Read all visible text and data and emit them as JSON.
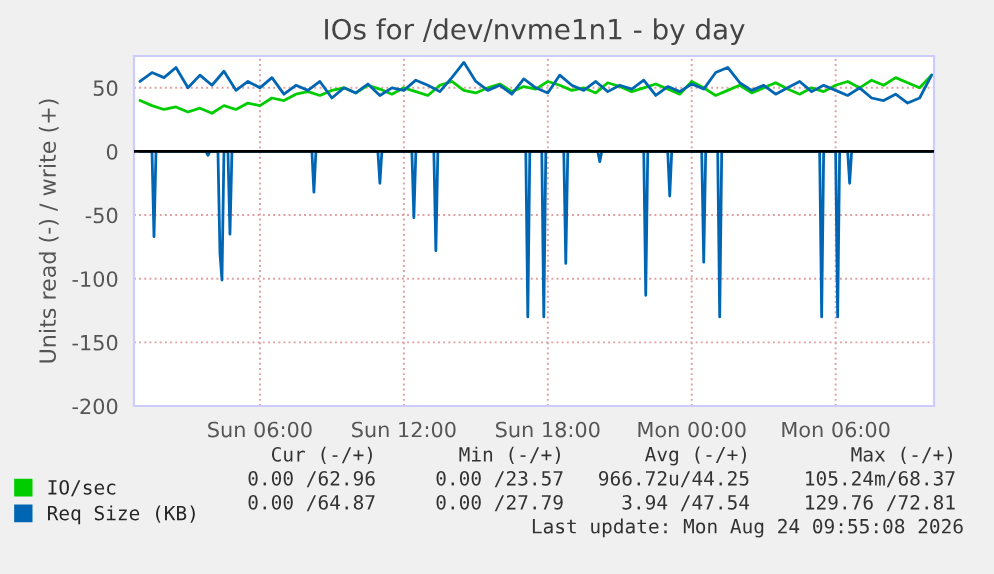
{
  "chart_data": {
    "type": "line",
    "title": "IOs for /dev/nvme1n1 - by day",
    "ylabel": "Units read (-) / write (+)",
    "xlim": [
      "2026-08-23T00:45",
      "2026-08-24T10:06"
    ],
    "ylim": [
      -200,
      75
    ],
    "xticks": [
      {
        "value": "2026-08-23T06:00",
        "label": "Sun 06:00"
      },
      {
        "value": "2026-08-23T12:00",
        "label": "Sun 12:00"
      },
      {
        "value": "2026-08-23T18:00",
        "label": "Sun 18:00"
      },
      {
        "value": "2026-08-24T00:00",
        "label": "Mon 00:00"
      },
      {
        "value": "2026-08-24T06:00",
        "label": "Mon 06:00"
      }
    ],
    "yticks": [
      -200,
      -150,
      -100,
      -50,
      0,
      50
    ],
    "grid": true,
    "legend": "bottom",
    "marker": "none",
    "line_style": "solid",
    "ref_lines": [
      {
        "axis": "y",
        "value": 0,
        "color": "#000000"
      }
    ],
    "x": [
      "2026-08-23T01:00",
      "2026-08-23T01:30",
      "2026-08-23T02:00",
      "2026-08-23T02:30",
      "2026-08-23T03:00",
      "2026-08-23T03:30",
      "2026-08-23T04:00",
      "2026-08-23T04:30",
      "2026-08-23T05:00",
      "2026-08-23T05:30",
      "2026-08-23T06:00",
      "2026-08-23T06:30",
      "2026-08-23T07:00",
      "2026-08-23T07:30",
      "2026-08-23T08:00",
      "2026-08-23T08:30",
      "2026-08-23T09:00",
      "2026-08-23T09:30",
      "2026-08-23T10:00",
      "2026-08-23T10:30",
      "2026-08-23T11:00",
      "2026-08-23T11:30",
      "2026-08-23T12:00",
      "2026-08-23T12:30",
      "2026-08-23T13:00",
      "2026-08-23T13:30",
      "2026-08-23T14:00",
      "2026-08-23T14:30",
      "2026-08-23T15:00",
      "2026-08-23T15:30",
      "2026-08-23T16:00",
      "2026-08-23T16:30",
      "2026-08-23T17:00",
      "2026-08-23T17:30",
      "2026-08-23T18:00",
      "2026-08-23T18:30",
      "2026-08-23T19:00",
      "2026-08-23T19:30",
      "2026-08-23T20:00",
      "2026-08-23T20:30",
      "2026-08-23T21:00",
      "2026-08-23T21:30",
      "2026-08-23T22:00",
      "2026-08-23T22:30",
      "2026-08-23T23:00",
      "2026-08-23T23:30",
      "2026-08-24T00:00",
      "2026-08-24T00:30",
      "2026-08-24T01:00",
      "2026-08-24T01:30",
      "2026-08-24T02:00",
      "2026-08-24T02:30",
      "2026-08-24T03:00",
      "2026-08-24T03:30",
      "2026-08-24T04:00",
      "2026-08-24T04:30",
      "2026-08-24T05:00",
      "2026-08-24T05:30",
      "2026-08-24T06:00",
      "2026-08-24T06:30",
      "2026-08-24T07:00",
      "2026-08-24T07:30",
      "2026-08-24T08:00",
      "2026-08-24T08:30",
      "2026-08-24T09:00",
      "2026-08-24T09:30",
      "2026-08-24T10:00"
    ],
    "series": [
      {
        "name": "IO/sec",
        "color": "#00cc00",
        "values": [
          40,
          36,
          33,
          35,
          31,
          34,
          30,
          36,
          33,
          38,
          36,
          42,
          40,
          45,
          47,
          44,
          48,
          50,
          46,
          52,
          49,
          45,
          50,
          47,
          44,
          52,
          55,
          48,
          46,
          50,
          53,
          47,
          51,
          49,
          55,
          52,
          48,
          50,
          46,
          54,
          51,
          47,
          50,
          53,
          49,
          45,
          55,
          50,
          44,
          48,
          52,
          46,
          50,
          54,
          49,
          45,
          50,
          47,
          52,
          55,
          50,
          56,
          52,
          58,
          54,
          50,
          60
        ]
      },
      {
        "name": "Req Size (KB)",
        "color": "#0066b3",
        "values": [
          55,
          62,
          58,
          66,
          50,
          60,
          52,
          63,
          48,
          55,
          50,
          58,
          45,
          52,
          48,
          55,
          42,
          50,
          46,
          53,
          44,
          50,
          48,
          56,
          52,
          47,
          58,
          70,
          55,
          48,
          52,
          45,
          57,
          50,
          46,
          60,
          52,
          48,
          55,
          47,
          52,
          49,
          56,
          44,
          51,
          47,
          53,
          49,
          62,
          66,
          54,
          48,
          52,
          45,
          50,
          55,
          47,
          52,
          48,
          44,
          50,
          42,
          40,
          45,
          38,
          42,
          60
        ]
      },
      {
        "color": "#0066b3",
        "x": [
          "2026-08-23T01:00",
          "2026-08-23T01:30",
          "2026-08-23T01:35",
          "2026-08-23T01:40",
          "2026-08-23T03:45",
          "2026-08-23T03:50",
          "2026-08-23T03:55",
          "2026-08-23T04:15",
          "2026-08-23T04:20",
          "2026-08-23T04:25",
          "2026-08-23T04:30",
          "2026-08-23T04:40",
          "2026-08-23T04:45",
          "2026-08-23T04:50",
          "2026-08-23T08:10",
          "2026-08-23T08:15",
          "2026-08-23T08:20",
          "2026-08-23T10:55",
          "2026-08-23T11:00",
          "2026-08-23T11:05",
          "2026-08-23T12:20",
          "2026-08-23T12:25",
          "2026-08-23T12:30",
          "2026-08-23T13:15",
          "2026-08-23T13:20",
          "2026-08-23T13:25",
          "2026-08-23T17:05",
          "2026-08-23T17:10",
          "2026-08-23T17:15",
          "2026-08-23T17:45",
          "2026-08-23T17:50",
          "2026-08-23T17:55",
          "2026-08-23T18:40",
          "2026-08-23T18:45",
          "2026-08-23T18:50",
          "2026-08-23T20:05",
          "2026-08-23T20:10",
          "2026-08-23T20:15",
          "2026-08-23T22:00",
          "2026-08-23T22:05",
          "2026-08-23T22:10",
          "2026-08-23T23:00",
          "2026-08-23T23:05",
          "2026-08-23T23:10",
          "2026-08-24T00:25",
          "2026-08-24T00:30",
          "2026-08-24T00:35",
          "2026-08-24T01:05",
          "2026-08-24T01:10",
          "2026-08-24T01:15",
          "2026-08-24T05:20",
          "2026-08-24T05:25",
          "2026-08-24T05:30",
          "2026-08-24T06:00",
          "2026-08-24T06:05",
          "2026-08-24T06:10",
          "2026-08-24T06:30",
          "2026-08-24T06:35",
          "2026-08-24T06:40",
          "2026-08-24T10:00"
        ],
        "values": [
          0,
          0,
          -67,
          0,
          0,
          -3,
          0,
          0,
          -80,
          -101,
          0,
          0,
          -65,
          0,
          0,
          -32,
          0,
          0,
          -25,
          0,
          0,
          -52,
          0,
          0,
          -78,
          0,
          0,
          -130,
          0,
          0,
          -130,
          0,
          0,
          -88,
          0,
          0,
          -8,
          0,
          0,
          -113,
          0,
          0,
          -35,
          0,
          0,
          -87,
          0,
          0,
          -130,
          0,
          0,
          -130,
          0,
          0,
          -130,
          0,
          0,
          -25,
          0,
          0
        ]
      }
    ],
    "annotations": [
      "Cur (-/+)",
      "Min (-/+)",
      "Avg (-/+)",
      "Max (-/+)",
      "0.00 /62.96",
      "0.00 /23.57",
      "966.72u/44.25",
      "105.24m/68.37",
      "0.00 /64.87",
      "0.00 /27.79",
      "3.94 /47.54",
      "129.76 /72.81",
      "Last update: Mon Aug 24 09:55:08 2026"
    ]
  }
}
